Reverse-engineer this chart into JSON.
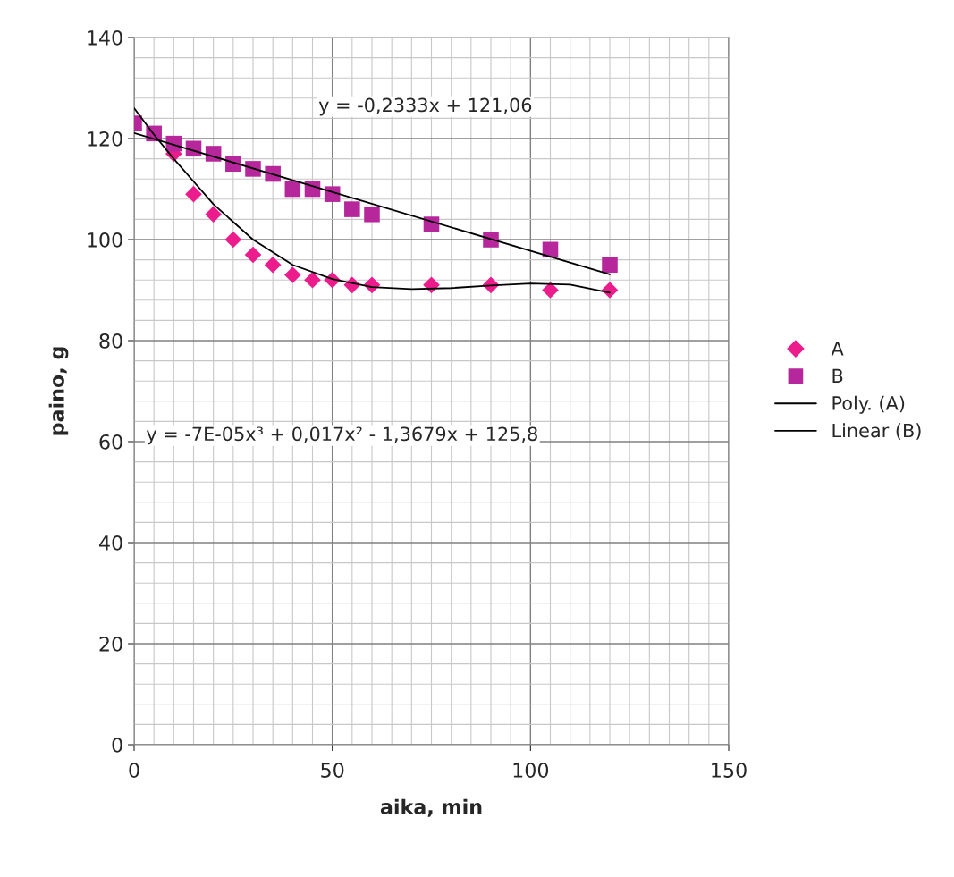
{
  "chart_data": {
    "type": "scatter",
    "xlabel": "aika, min",
    "ylabel": "paino, g",
    "xlim": [
      0,
      150
    ],
    "xticks": [
      0,
      50,
      100,
      150
    ],
    "ylim": [
      0,
      140
    ],
    "yticks": [
      0,
      20,
      40,
      60,
      80,
      100,
      120,
      140
    ],
    "grid": true,
    "legend": "right",
    "series": [
      {
        "name": "A",
        "marker": "diamond",
        "color": "#ec1c8c",
        "x": [
          10,
          15,
          20,
          25,
          30,
          35,
          40,
          45,
          50,
          55,
          60,
          75,
          90,
          105,
          120
        ],
        "values": [
          117,
          109,
          105,
          100,
          97,
          95,
          93,
          92,
          92,
          91,
          91,
          91,
          91,
          90,
          90
        ]
      },
      {
        "name": "B",
        "marker": "square",
        "color": "#b7279c",
        "x": [
          0,
          5,
          10,
          15,
          20,
          25,
          30,
          35,
          40,
          45,
          50,
          55,
          60,
          75,
          90,
          105,
          120
        ],
        "values": [
          123,
          121,
          119,
          118,
          117,
          115,
          114,
          113,
          110,
          110,
          109,
          106,
          105,
          103,
          100,
          98,
          95
        ]
      },
      {
        "name": "Poly. (A)",
        "type": "line",
        "color": "#000000",
        "line_style": "solid",
        "x": [
          0,
          5,
          10,
          15,
          20,
          25,
          30,
          40,
          50,
          60,
          70,
          80,
          90,
          100,
          110,
          120
        ],
        "values": [
          126,
          120.8,
          116,
          111.5,
          107,
          103.5,
          100,
          95,
          92.2,
          90.6,
          90.2,
          90.4,
          90.9,
          91.3,
          91.1,
          89.5
        ]
      },
      {
        "name": "Linear (B)",
        "type": "line",
        "color": "#000000",
        "line_style": "solid",
        "x": [
          0,
          120
        ],
        "values": [
          121.1,
          93.1
        ]
      }
    ],
    "annotations": [
      "y = -0,2333x + 121,06",
      "y = -7E-05x³ + 0,017x² - 1,3679x + 125,8"
    ]
  }
}
